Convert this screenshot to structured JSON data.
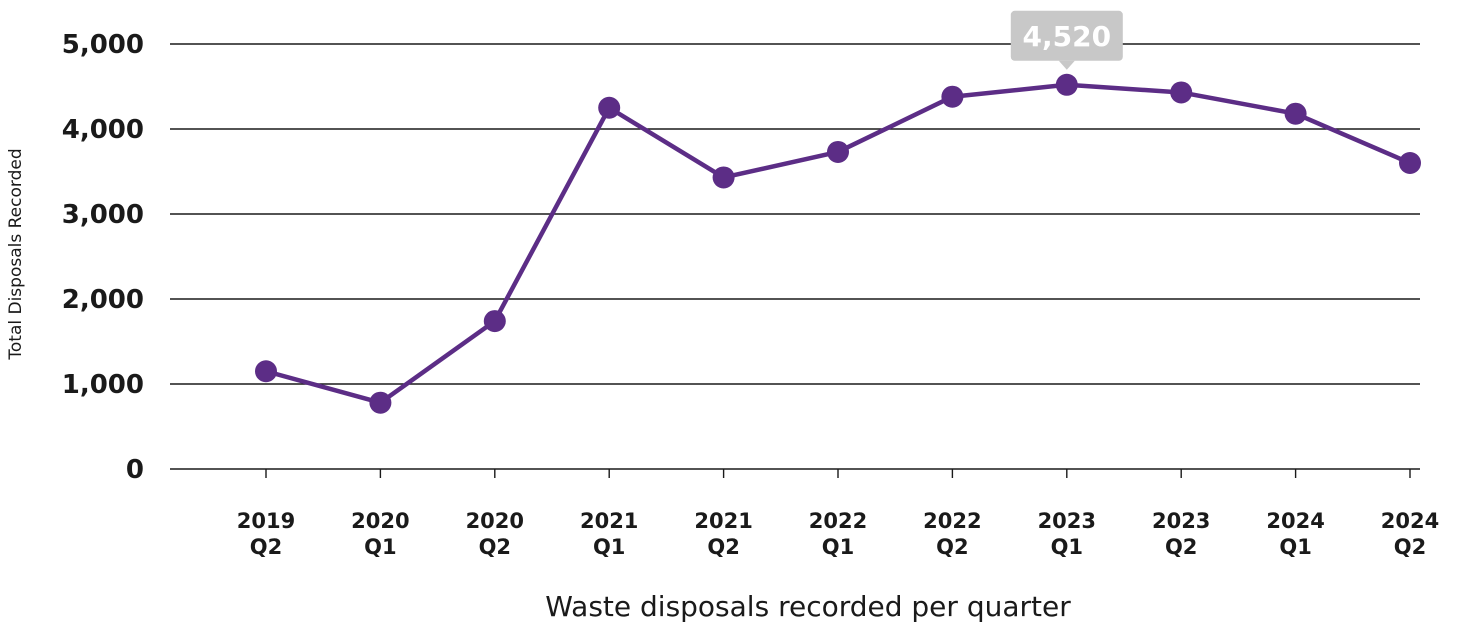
{
  "chart_data": {
    "type": "line",
    "title": "",
    "xlabel": "Waste disposals recorded per quarter",
    "ylabel": "Total Disposals Recorded",
    "categories": [
      [
        "2019",
        "Q2"
      ],
      [
        "2020",
        "Q1"
      ],
      [
        "2020",
        "Q2"
      ],
      [
        "2021",
        "Q1"
      ],
      [
        "2021",
        "Q2"
      ],
      [
        "2022",
        "Q1"
      ],
      [
        "2022",
        "Q2"
      ],
      [
        "2023",
        "Q1"
      ],
      [
        "2023",
        "Q2"
      ],
      [
        "2024",
        "Q1"
      ],
      [
        "2024",
        "Q2"
      ]
    ],
    "series": [
      {
        "values": [
          1150,
          780,
          1740,
          4250,
          3430,
          3730,
          4380,
          4520,
          4430,
          4180,
          3600
        ],
        "color": "#5c2d86"
      }
    ],
    "ylim": [
      0,
      5000
    ],
    "yticks": [
      0,
      1000,
      2000,
      3000,
      4000,
      5000
    ],
    "ytick_labels": [
      "0",
      "1,000",
      "2,000",
      "3,000",
      "4,000",
      "5,000"
    ],
    "grid": true,
    "legend": "none",
    "annotation": {
      "category_index": 7,
      "text": "4,520",
      "color": "#c8c8c8"
    }
  }
}
